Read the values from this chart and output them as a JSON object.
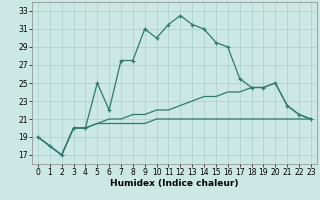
{
  "xlabel": "Humidex (Indice chaleur)",
  "x": [
    0,
    1,
    2,
    3,
    4,
    5,
    6,
    7,
    8,
    9,
    10,
    11,
    12,
    13,
    14,
    15,
    16,
    17,
    18,
    19,
    20,
    21,
    22,
    23
  ],
  "line1": [
    19,
    18,
    17,
    20,
    20,
    25,
    22,
    27.5,
    27.5,
    31,
    30,
    31.5,
    32.5,
    31.5,
    31,
    29.5,
    29,
    25.5,
    24.5,
    24.5,
    25,
    22.5,
    21.5,
    21
  ],
  "line2": [
    19,
    18,
    17,
    20,
    20,
    20.5,
    20.5,
    20.5,
    20.5,
    20.5,
    21,
    21,
    21,
    21,
    21,
    21,
    21,
    21,
    21,
    21,
    21,
    21,
    21,
    21
  ],
  "line3": [
    19,
    18,
    17,
    20,
    20,
    20.5,
    21,
    21,
    21.5,
    21.5,
    22,
    22,
    22.5,
    23,
    23.5,
    23.5,
    24,
    24,
    24.5,
    24.5,
    25,
    22.5,
    21.5,
    21
  ],
  "line_color": "#2d7a6e",
  "background_color": "#cce8e4",
  "grid_color": "#aacfcc",
  "ylim": [
    16,
    34
  ],
  "yticks": [
    17,
    19,
    21,
    23,
    25,
    27,
    29,
    31,
    33
  ],
  "xticks": [
    0,
    1,
    2,
    3,
    4,
    5,
    6,
    7,
    8,
    9,
    10,
    11,
    12,
    13,
    14,
    15,
    16,
    17,
    18,
    19,
    20,
    21,
    22,
    23
  ],
  "tick_fontsize": 5.5,
  "label_fontsize": 6.5
}
